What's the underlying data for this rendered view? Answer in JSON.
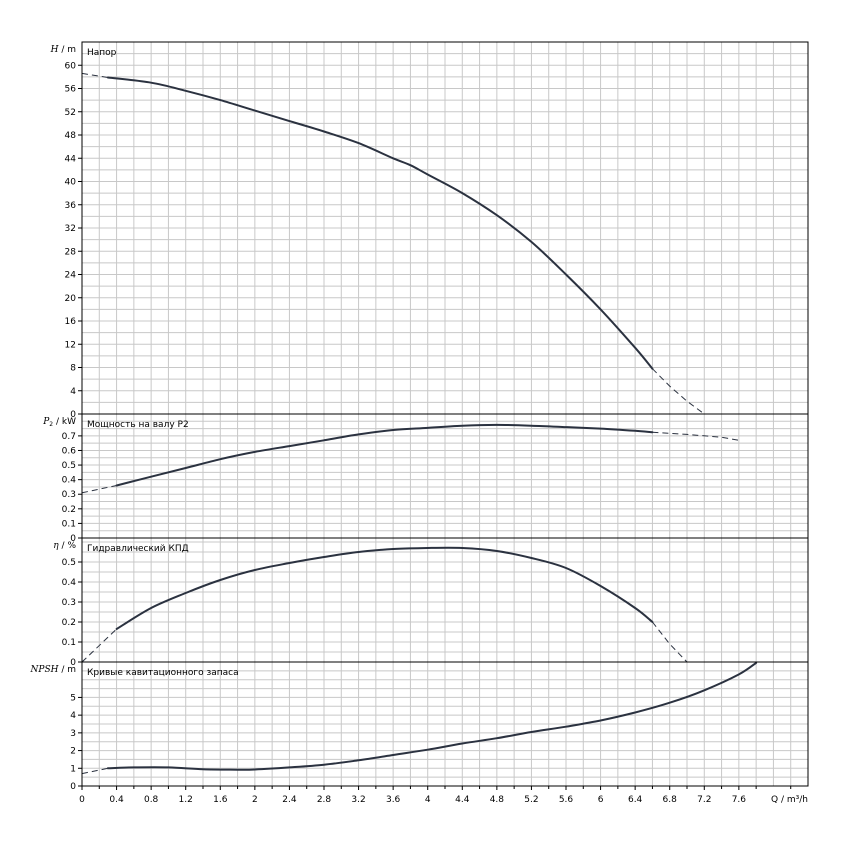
{
  "chart_data": [
    {
      "type": "line",
      "title": "Напор",
      "ylabel": "H / m",
      "ylabel_symbol": "H",
      "ylabel_unit": "/ m",
      "ylim": [
        0,
        64
      ],
      "yticks": [
        0,
        4,
        8,
        12,
        16,
        20,
        24,
        28,
        32,
        36,
        40,
        44,
        48,
        52,
        56,
        60
      ],
      "series": [
        {
          "x": [
            0.3,
            0.8,
            1.2,
            1.6,
            2.0,
            2.4,
            2.8,
            3.2,
            3.6,
            3.8,
            4.0,
            4.4,
            4.8,
            5.2,
            5.6,
            6.0,
            6.4,
            6.6
          ],
          "y": [
            57.9,
            57.0,
            55.6,
            54.0,
            52.2,
            50.4,
            48.6,
            46.6,
            44.0,
            42.8,
            41.2,
            38.0,
            34.2,
            29.6,
            24.0,
            18.0,
            11.4,
            7.8
          ]
        }
      ],
      "extension": [
        {
          "x": [
            0.0,
            0.3
          ],
          "y": [
            58.6,
            57.9
          ]
        },
        {
          "x": [
            6.6,
            6.8,
            7.0,
            7.2
          ],
          "y": [
            7.8,
            4.8,
            2.2,
            0.0
          ]
        }
      ]
    },
    {
      "type": "line",
      "title": "Мощность на валу P2",
      "ylabel": "P2 / kW",
      "ylabel_symbol": "P",
      "ylabel_sub": "2",
      "ylabel_unit": "/ kW",
      "ylim": [
        0,
        0.85
      ],
      "yticks": [
        0,
        0.1,
        0.2,
        0.3,
        0.4,
        0.5,
        0.6,
        0.7
      ],
      "ytick_labels": [
        "0",
        "0.1",
        "0.2",
        "0.3",
        "0.4",
        "0.5",
        "0.6",
        "0.7"
      ],
      "series": [
        {
          "x": [
            0.4,
            0.8,
            1.2,
            1.6,
            2.0,
            2.4,
            2.8,
            3.2,
            3.6,
            4.0,
            4.4,
            4.8,
            5.2,
            5.6,
            6.0,
            6.4,
            6.6
          ],
          "y": [
            0.36,
            0.42,
            0.48,
            0.54,
            0.59,
            0.63,
            0.67,
            0.71,
            0.74,
            0.755,
            0.77,
            0.775,
            0.77,
            0.76,
            0.75,
            0.735,
            0.725
          ]
        }
      ],
      "extension": [
        {
          "x": [
            0.0,
            0.4
          ],
          "y": [
            0.31,
            0.36
          ]
        },
        {
          "x": [
            6.6,
            7.0,
            7.4,
            7.6
          ],
          "y": [
            0.725,
            0.71,
            0.69,
            0.67
          ]
        }
      ]
    },
    {
      "type": "line",
      "title": "Гидравлический КПД",
      "ylabel": "η / %",
      "ylabel_symbol": "η",
      "ylabel_unit": "/ %",
      "ylim": [
        0,
        0.62
      ],
      "yticks": [
        0,
        0.1,
        0.2,
        0.3,
        0.4,
        0.5
      ],
      "ytick_labels": [
        "0",
        "0.1",
        "0.2",
        "0.3",
        "0.4",
        "0.5"
      ],
      "series": [
        {
          "x": [
            0.4,
            0.8,
            1.2,
            1.6,
            2.0,
            2.4,
            2.8,
            3.2,
            3.6,
            4.0,
            4.4,
            4.8,
            5.2,
            5.6,
            6.0,
            6.4,
            6.6
          ],
          "y": [
            0.165,
            0.27,
            0.345,
            0.41,
            0.46,
            0.495,
            0.525,
            0.55,
            0.565,
            0.57,
            0.57,
            0.555,
            0.52,
            0.47,
            0.38,
            0.27,
            0.2
          ]
        }
      ],
      "extension": [
        {
          "x": [
            0.0,
            0.4
          ],
          "y": [
            0.0,
            0.165
          ]
        },
        {
          "x": [
            6.6,
            6.8,
            7.0
          ],
          "y": [
            0.2,
            0.09,
            0.0
          ]
        }
      ]
    },
    {
      "type": "line",
      "title": "Кривые кавитационного запаса",
      "ylabel": "NPSH / m",
      "ylabel_symbol": "NPSH",
      "ylabel_unit": "/ m",
      "ylim": [
        0,
        7
      ],
      "yticks": [
        0,
        1,
        2,
        3,
        4,
        5
      ],
      "series": [
        {
          "x": [
            0.3,
            0.6,
            1.0,
            1.4,
            1.8,
            2.0,
            2.4,
            2.8,
            3.2,
            3.6,
            4.0,
            4.4,
            4.8,
            5.2,
            5.6,
            6.0,
            6.4,
            6.8,
            7.2,
            7.6,
            7.8
          ],
          "y": [
            1.0,
            1.05,
            1.05,
            0.95,
            0.92,
            0.93,
            1.05,
            1.2,
            1.45,
            1.75,
            2.05,
            2.4,
            2.7,
            3.05,
            3.35,
            3.7,
            4.15,
            4.7,
            5.4,
            6.3,
            6.95
          ]
        }
      ],
      "extension": [
        {
          "x": [
            0.0,
            0.3
          ],
          "y": [
            0.7,
            1.0
          ]
        }
      ]
    }
  ],
  "x_axis": {
    "label": "Q / m³/h",
    "xlim": [
      0,
      8.4
    ],
    "ticks": [
      0,
      0.4,
      0.8,
      1.2,
      1.6,
      2,
      2.4,
      2.8,
      3.2,
      3.6,
      4,
      4.4,
      4.8,
      5.2,
      5.6,
      6,
      6.4,
      6.8,
      7.2,
      7.6
    ],
    "tick_labels": [
      "0",
      "0.4",
      "0.8",
      "1.2",
      "1.6",
      "2",
      "2.4",
      "2.8",
      "3.2",
      "3.6",
      "4",
      "4.4",
      "4.8",
      "5.2",
      "5.6",
      "6",
      "6.4",
      "6.8",
      "7.2",
      "7.6"
    ]
  },
  "grid": true
}
